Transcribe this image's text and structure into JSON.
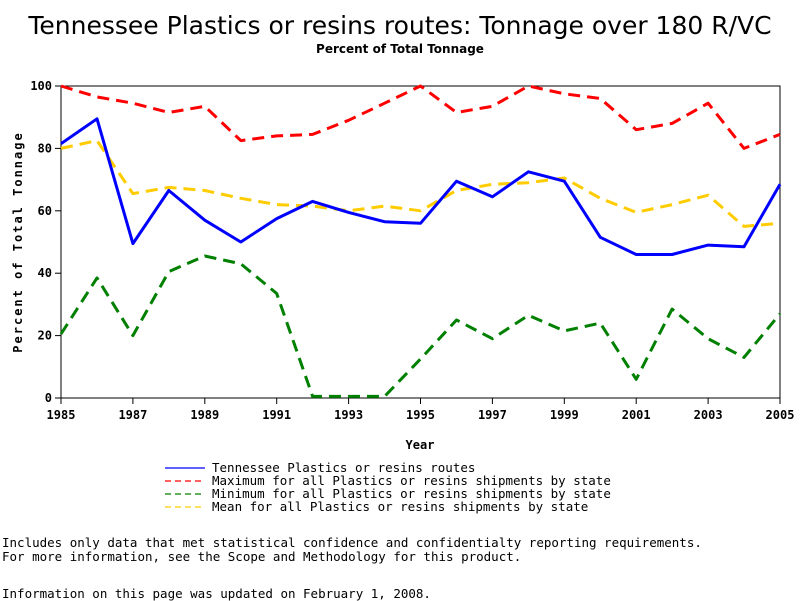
{
  "chart_data": {
    "type": "line",
    "title": "Tennessee Plastics or resins routes: Tonnage over 180 R/VC",
    "subtitle": "Percent of Total Tonnage",
    "xlabel": "Year",
    "ylabel": "Percent of Total Tonnage",
    "xlim": [
      1985,
      2005
    ],
    "ylim": [
      0,
      100
    ],
    "x_ticks": [
      "1985",
      "1987",
      "1989",
      "1991",
      "1993",
      "1995",
      "1997",
      "1999",
      "2001",
      "2003",
      "2005"
    ],
    "y_ticks": [
      "0",
      "20",
      "40",
      "60",
      "80",
      "100"
    ],
    "x": [
      1985,
      1986,
      1987,
      1988,
      1989,
      1990,
      1991,
      1992,
      1993,
      1994,
      1995,
      1996,
      1997,
      1998,
      1999,
      2000,
      2001,
      2002,
      2003,
      2004,
      2005
    ],
    "legend_position": "bottom",
    "series": [
      {
        "name": "Tennessee Plastics or resins routes",
        "color": "#0000ff",
        "style": "solid",
        "values": [
          81.5,
          89.5,
          49.5,
          66.5,
          57,
          50,
          57.5,
          63,
          59.5,
          56.5,
          56,
          69.5,
          64.5,
          72.5,
          69.5,
          51.5,
          46,
          46,
          49,
          48.5,
          68.5
        ]
      },
      {
        "name": "Maximum for all Plastics or resins shipments by state",
        "color": "#ff0000",
        "style": "dashed",
        "values": [
          100,
          96.5,
          94.5,
          91.5,
          93.5,
          82.5,
          84,
          84.5,
          89,
          94.5,
          100,
          91.5,
          93.5,
          100,
          97.5,
          96,
          86,
          88,
          94.5,
          80,
          84.5
        ]
      },
      {
        "name": "Minimum for all Plastics or resins shipments by state",
        "color": "#008000",
        "style": "dashed",
        "values": [
          20.5,
          38.5,
          20,
          40.5,
          45.5,
          43,
          33.5,
          0.5,
          0.5,
          0.5,
          12.5,
          25,
          19,
          26.5,
          21.5,
          24,
          6,
          28.5,
          19,
          13,
          27
        ]
      },
      {
        "name": "Mean for all Plastics or resins shipments by state",
        "color": "#ffcc00",
        "style": "dashed",
        "values": [
          80,
          82.5,
          65.5,
          67.5,
          66.5,
          64,
          62,
          61.5,
          60,
          61.5,
          60,
          66.5,
          68.5,
          69,
          70.5,
          64,
          59.5,
          62,
          65,
          55,
          56
        ]
      }
    ]
  },
  "notes": {
    "line1": "Includes only data that met statistical confidence and confidentialty reporting requirements.",
    "line2": "For more information, see the Scope and Methodology for this product.",
    "line3": "Information on this page was updated on February 1, 2008."
  }
}
